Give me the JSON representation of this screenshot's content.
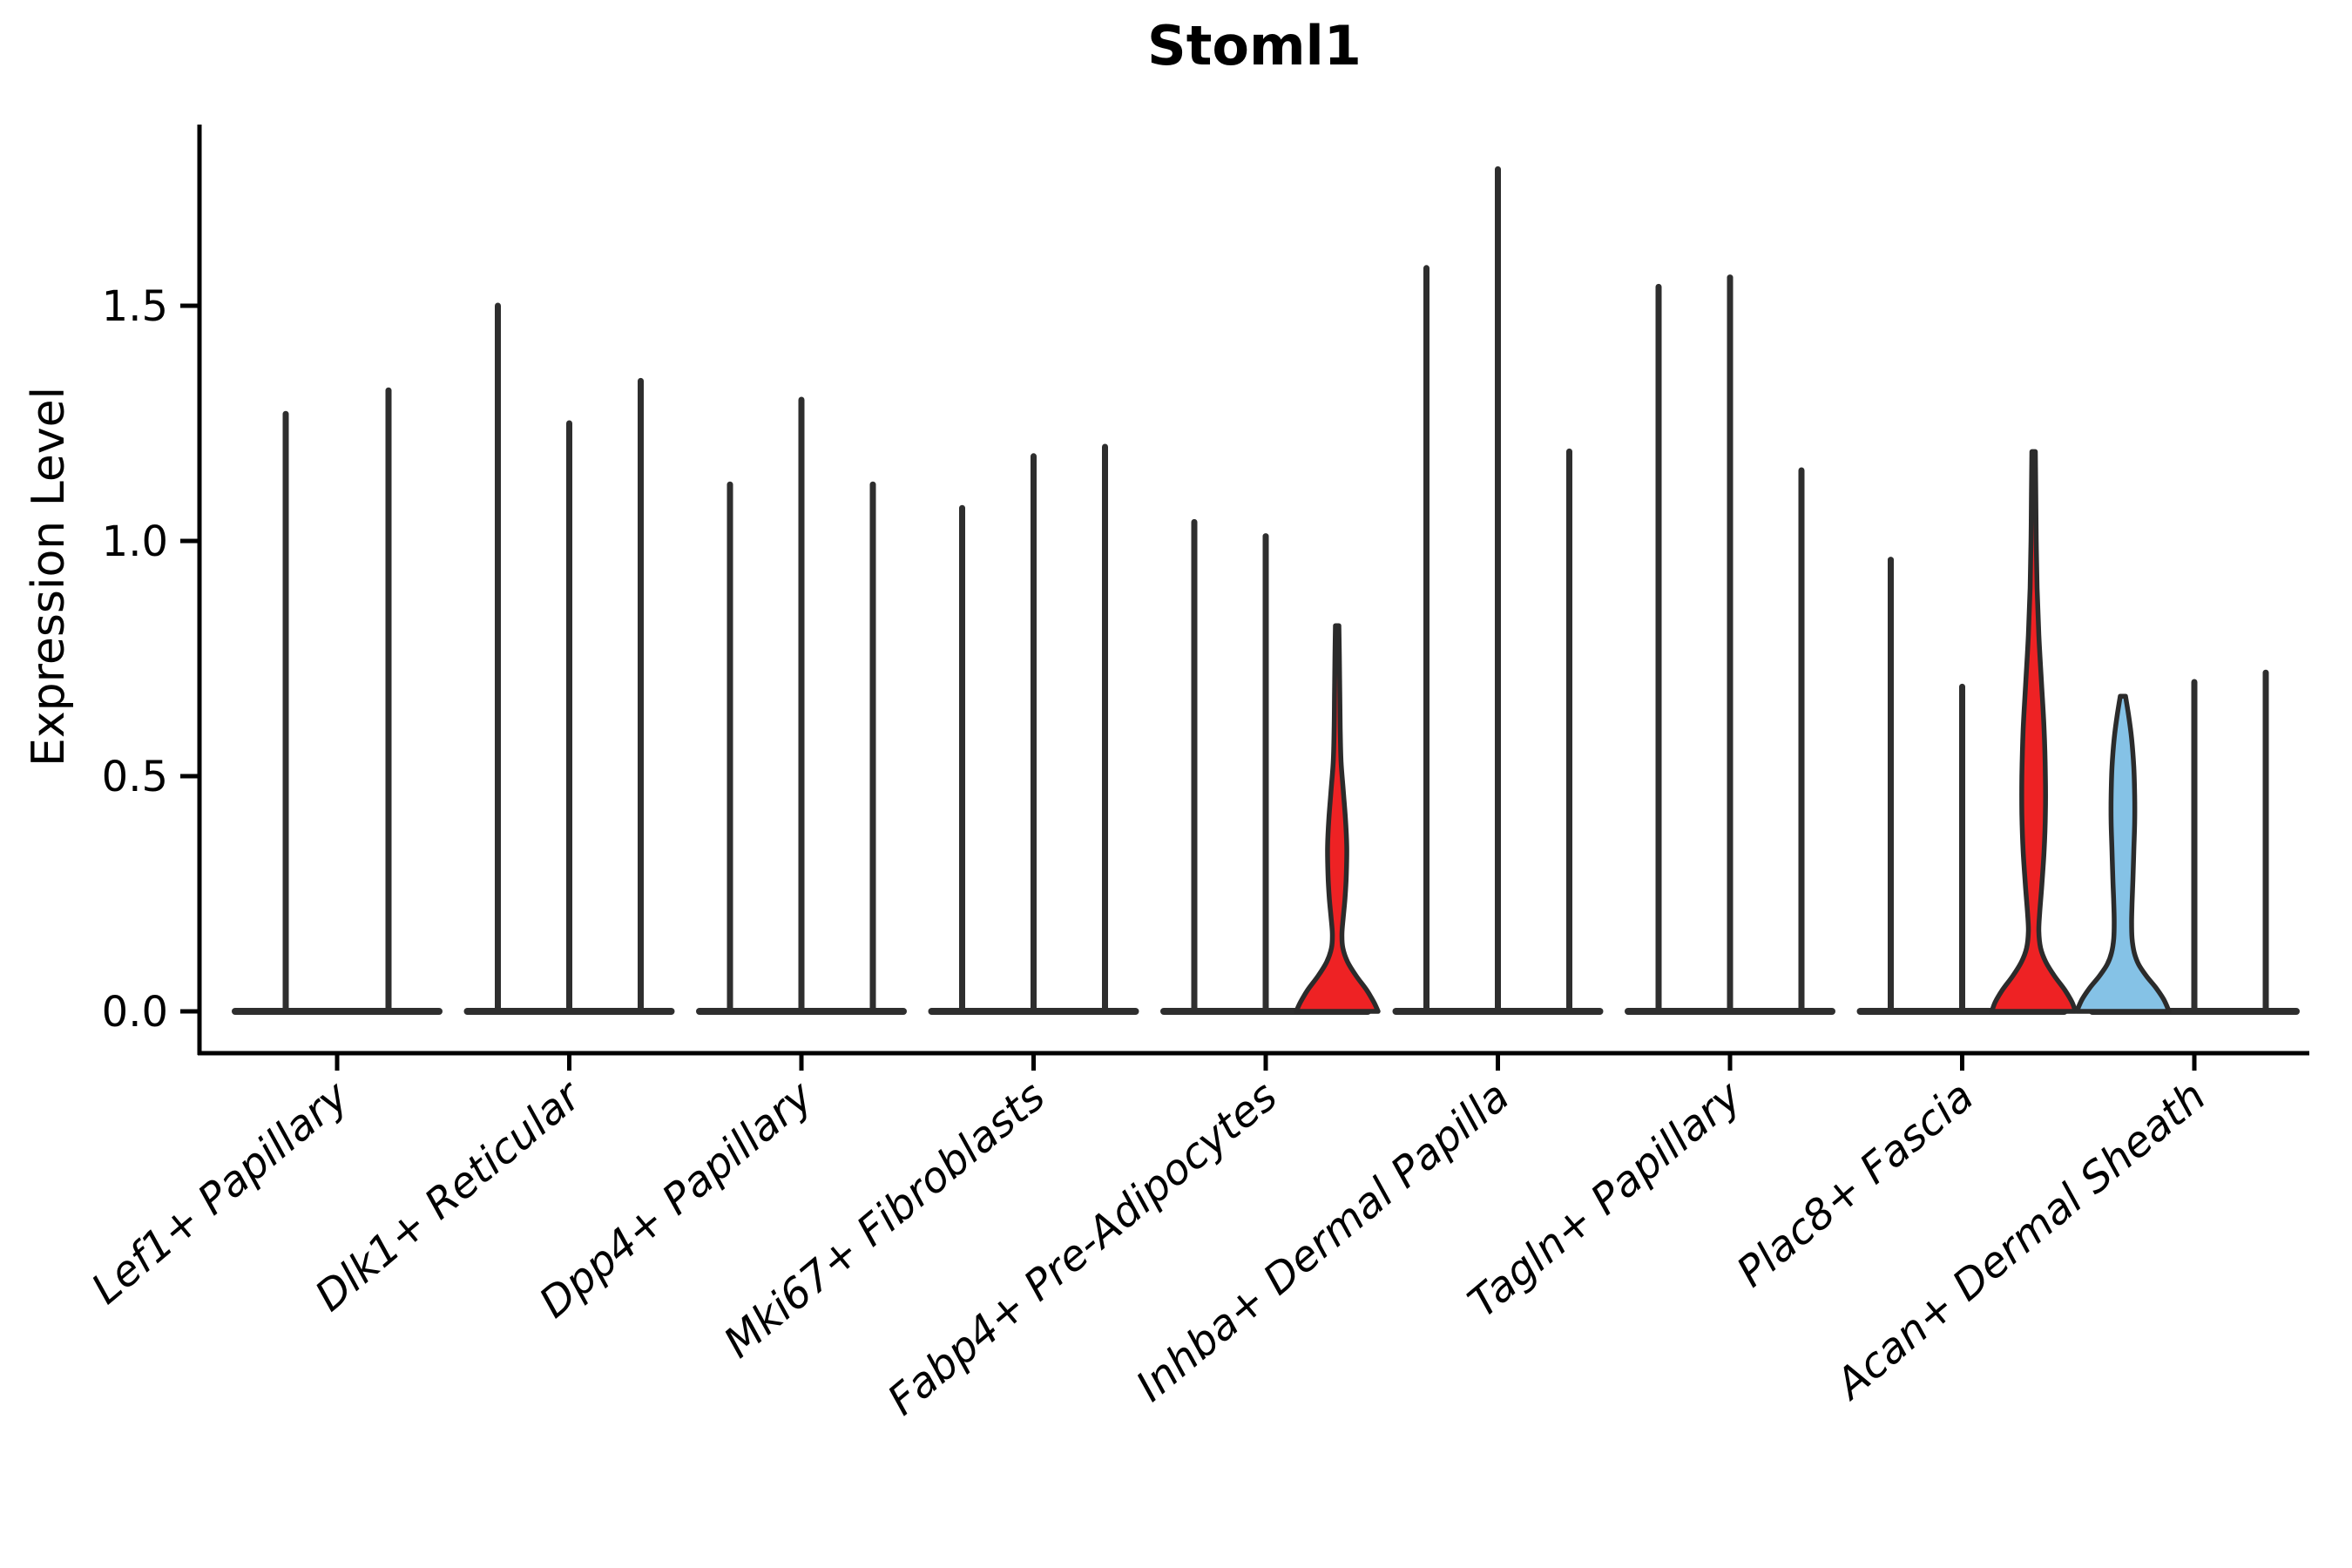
{
  "figure": {
    "title": "Stoml1",
    "ylabel": "Expression Level"
  },
  "chart_data": {
    "type": "violin",
    "title": "Stoml1",
    "xlabel": "",
    "ylabel": "Expression Level",
    "ylim": [
      -0.09,
      1.885
    ],
    "ytick_labels": [
      "0.0",
      "0.5",
      "1.0",
      "1.5"
    ],
    "ytick_values": [
      0.0,
      0.5,
      1.0,
      1.5
    ],
    "grid": false,
    "legend": "none",
    "colors": {
      "spine": "#000000",
      "tick_label": "#000000",
      "violin_line": "#2e2e2e",
      "violin_edge": "#2b2b2b",
      "red_fill": "#ee2224",
      "blue_fill": "#85c2e6"
    },
    "categories": [
      "Lef1+ Papillary",
      "Dlk1+ Reticular",
      "Dpp4+ Papillary",
      "Mki67+ Fibroblasts",
      "Fabp4+ Pre-Adipocytes",
      "Inhba+ Dermal Papilla",
      "Tagln+ Papillary",
      "Plac8+ Fascia",
      "Acan+ Dermal Sheath"
    ],
    "groups": [
      {
        "category": "Lef1+ Papillary",
        "violins": [
          {
            "max": 1.27,
            "style": "line"
          },
          {
            "max": 1.32,
            "style": "line"
          }
        ]
      },
      {
        "category": "Dlk1+ Reticular",
        "violins": [
          {
            "max": 1.5,
            "style": "line"
          },
          {
            "max": 1.25,
            "style": "line"
          },
          {
            "max": 1.34,
            "style": "line"
          }
        ]
      },
      {
        "category": "Dpp4+ Papillary",
        "violins": [
          {
            "max": 1.12,
            "style": "line"
          },
          {
            "max": 1.3,
            "style": "line"
          },
          {
            "max": 1.12,
            "style": "line"
          }
        ]
      },
      {
        "category": "Mki67+ Fibroblasts",
        "violins": [
          {
            "max": 1.07,
            "style": "line"
          },
          {
            "max": 1.18,
            "style": "line"
          },
          {
            "max": 1.2,
            "style": "line"
          }
        ]
      },
      {
        "category": "Fabp4+ Pre-Adipocytes",
        "violins": [
          {
            "max": 1.04,
            "style": "line"
          },
          {
            "max": 1.01,
            "style": "line"
          },
          {
            "max": 0.82,
            "style": "filled",
            "fill": "red_fill",
            "profile": [
              [
                0.82,
                2
              ],
              [
                0.76,
                2.5
              ],
              [
                0.68,
                3
              ],
              [
                0.6,
                3.5
              ],
              [
                0.53,
                4.5
              ],
              [
                0.47,
                7
              ],
              [
                0.41,
                9.5
              ],
              [
                0.35,
                11
              ],
              [
                0.29,
                10.5
              ],
              [
                0.24,
                9
              ],
              [
                0.2,
                7
              ],
              [
                0.165,
                5.5
              ],
              [
                0.135,
                6.5
              ],
              [
                0.105,
                12
              ],
              [
                0.075,
                22
              ],
              [
                0.045,
                34
              ],
              [
                0.02,
                42
              ],
              [
                0,
                47
              ]
            ]
          }
        ]
      },
      {
        "category": "Inhba+ Dermal Papilla",
        "violins": [
          {
            "max": 1.58,
            "style": "line"
          },
          {
            "max": 1.79,
            "style": "line"
          },
          {
            "max": 1.19,
            "style": "line"
          }
        ]
      },
      {
        "category": "Tagln+ Papillary",
        "violins": [
          {
            "max": 1.54,
            "style": "line"
          },
          {
            "max": 1.56,
            "style": "line"
          },
          {
            "max": 1.15,
            "style": "line"
          }
        ]
      },
      {
        "category": "Plac8+ Fascia",
        "violins": [
          {
            "max": 0.96,
            "style": "line"
          },
          {
            "max": 0.69,
            "style": "line"
          },
          {
            "max": 1.19,
            "style": "filled",
            "fill": "red_fill",
            "profile": [
              [
                1.19,
                2
              ],
              [
                1.1,
                2.5
              ],
              [
                1.0,
                3
              ],
              [
                0.9,
                4
              ],
              [
                0.8,
                6
              ],
              [
                0.7,
                9
              ],
              [
                0.6,
                12
              ],
              [
                0.5,
                13.5
              ],
              [
                0.42,
                13.5
              ],
              [
                0.34,
                12
              ],
              [
                0.27,
                9.5
              ],
              [
                0.21,
                7
              ],
              [
                0.17,
                6
              ],
              [
                0.135,
                8
              ],
              [
                0.105,
                14
              ],
              [
                0.075,
                24
              ],
              [
                0.045,
                36
              ],
              [
                0.02,
                44
              ],
              [
                0,
                48
              ]
            ]
          }
        ]
      },
      {
        "category": "Acan+ Dermal Sheath",
        "violins": [
          {
            "max": 0.67,
            "style": "filled",
            "fill": "blue_fill",
            "profile": [
              [
                0.67,
                3
              ],
              [
                0.63,
                6.5
              ],
              [
                0.58,
                10
              ],
              [
                0.52,
                12.5
              ],
              [
                0.46,
                13.5
              ],
              [
                0.4,
                13.5
              ],
              [
                0.34,
                12.5
              ],
              [
                0.28,
                11.5
              ],
              [
                0.23,
                10.5
              ],
              [
                0.19,
                10
              ],
              [
                0.155,
                10.5
              ],
              [
                0.125,
                13
              ],
              [
                0.1,
                18
              ],
              [
                0.075,
                27
              ],
              [
                0.05,
                38
              ],
              [
                0.025,
                47
              ],
              [
                0,
                53
              ]
            ]
          },
          {
            "max": 0.7,
            "style": "line"
          },
          {
            "max": 0.72,
            "style": "line"
          }
        ]
      }
    ]
  }
}
